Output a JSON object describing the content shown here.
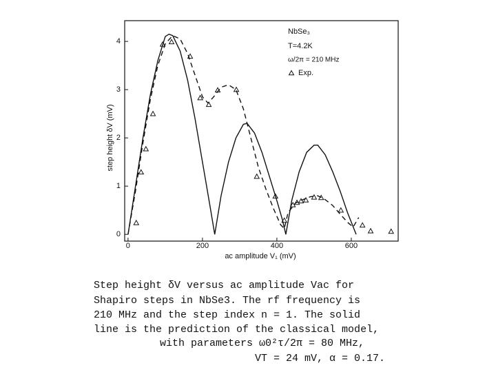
{
  "chart_data": {
    "type": "line",
    "x_label": "ac amplitude V₁ (mV)",
    "y_label": "step height δV (mV)",
    "annotations": [
      "NbSe₃",
      "T=4.2K",
      "ω/2π = 210 MHz"
    ],
    "xlim": [
      -9,
      726
    ],
    "ylim": [
      -0.14,
      4.43
    ],
    "xticks": [
      0,
      200,
      400,
      600
    ],
    "yticks": [
      0,
      1,
      2,
      3,
      4
    ],
    "grid": false,
    "series": [
      {
        "color": "#111",
        "line": "solid",
        "x": [
          0,
          20,
          40,
          60,
          80,
          100,
          110,
          120,
          140,
          160,
          180,
          200,
          220,
          233,
          250,
          270,
          290,
          310,
          320,
          340,
          360,
          380,
          400,
          415,
          424,
          440,
          460,
          480,
          500,
          510,
          530,
          550,
          570,
          590,
          613
        ],
        "values": [
          0,
          1.0,
          2.0,
          2.9,
          3.6,
          4.1,
          4.15,
          4.12,
          3.8,
          3.2,
          2.4,
          1.5,
          0.6,
          0,
          0.8,
          1.5,
          2.0,
          2.28,
          2.3,
          2.1,
          1.7,
          1.2,
          0.7,
          0.3,
          0,
          0.7,
          1.3,
          1.7,
          1.85,
          1.85,
          1.65,
          1.3,
          0.9,
          0.45,
          0
        ]
      },
      {
        "color": "#111",
        "line": "dashed",
        "x": [
          0,
          20,
          40,
          60,
          80,
          100,
          120,
          140,
          160,
          180,
          200,
          215,
          230,
          250,
          270,
          290,
          310,
          330,
          350,
          370,
          390,
          410,
          420,
          430,
          450,
          470,
          490,
          510,
          530,
          550,
          570,
          590,
          605,
          620
        ],
        "values": [
          0,
          0.9,
          1.9,
          2.8,
          3.5,
          3.95,
          4.12,
          4.05,
          3.75,
          3.3,
          2.85,
          2.72,
          2.85,
          3.05,
          3.1,
          3.0,
          2.6,
          2.0,
          1.4,
          0.95,
          0.55,
          0.2,
          0.12,
          0.45,
          0.65,
          0.72,
          0.78,
          0.8,
          0.72,
          0.6,
          0.42,
          0.25,
          0.15,
          0.35
        ]
      },
      {
        "name": "Exp.",
        "color": "#111",
        "marker": "triangle",
        "x": [
          22,
          35,
          48,
          67,
          93,
          117,
          167,
          194,
          217,
          241,
          291,
          346,
          396,
          420,
          443,
          454,
          465,
          478,
          500,
          519,
          572,
          630,
          652,
          707
        ],
        "values": [
          0.24,
          1.29,
          1.77,
          2.5,
          3.94,
          3.99,
          3.69,
          2.83,
          2.69,
          2.99,
          3.0,
          1.2,
          0.79,
          0.29,
          0.61,
          0.66,
          0.69,
          0.71,
          0.77,
          0.76,
          0.5,
          0.19,
          0.07,
          0.06
        ]
      }
    ],
    "caption": [
      "Step height δV versus ac amplitude Vac for",
      "Shapiro steps in NbSe3.  The rf frequency is",
      "210 MHz and the step index n = 1.  The solid",
      "line is the prediction of the classical model,",
      "with parameters ω0²τ/2π = 80 MHz,",
      "VT = 24 mV, α = 0.17."
    ]
  }
}
